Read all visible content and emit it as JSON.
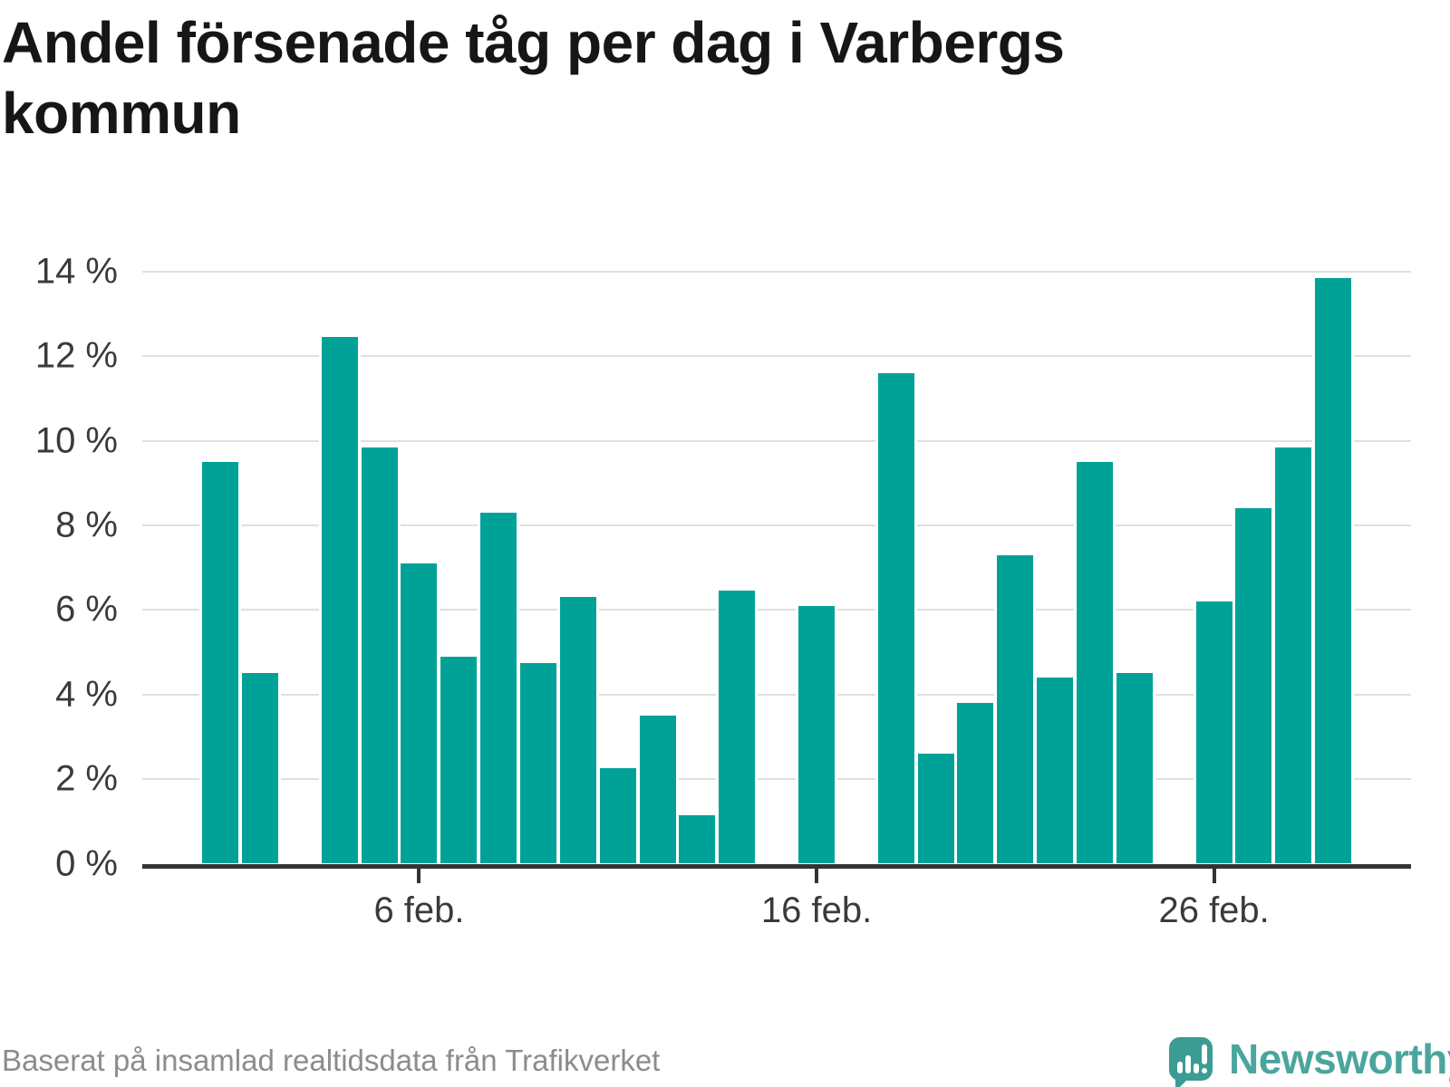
{
  "title": "Andel försenade tåg per dag i Varbergs kommun",
  "footer": {
    "source": "Baserat på insamlad realtidsdata från Trafikverket"
  },
  "logo": {
    "text": "Newsworthy",
    "bubble_color": "#3b9c94",
    "text_color": "#4ba59e",
    "icon": "bar-chart-exclamation-speech-bubble"
  },
  "colors": {
    "bar": "#00a298",
    "grid": "#e0e0e0",
    "axis": "#333333",
    "tick_label": "#3a3a3a",
    "title": "#161616",
    "footer_text": "#8c8c8c",
    "background": "#ffffff"
  },
  "chart_data": {
    "type": "bar",
    "title": "Andel försenade tåg per dag i Varbergs kommun",
    "xlabel": "",
    "ylabel": "",
    "unit": "%",
    "month": "feb.",
    "categories": [
      1,
      2,
      3,
      4,
      5,
      6,
      7,
      8,
      9,
      10,
      11,
      12,
      13,
      14,
      15,
      16,
      17,
      18,
      19,
      20,
      21,
      22,
      23,
      24,
      25,
      26,
      27,
      28,
      29
    ],
    "values": [
      9.5,
      4.5,
      null,
      12.45,
      9.85,
      7.1,
      4.9,
      8.3,
      4.75,
      6.3,
      2.25,
      3.5,
      1.15,
      6.45,
      null,
      6.1,
      null,
      11.6,
      2.6,
      3.8,
      7.3,
      4.4,
      9.5,
      4.5,
      null,
      6.2,
      8.4,
      9.85,
      13.85
    ],
    "ylim": [
      0,
      14
    ],
    "y_ticks": [
      0,
      2,
      4,
      6,
      8,
      10,
      12,
      14
    ],
    "y_tick_labels": [
      "0 %",
      "2 %",
      "4 %",
      "6 %",
      "8 %",
      "10 %",
      "12 %",
      "14 %"
    ],
    "x_ticks": [
      {
        "day": 6,
        "label": "6 feb."
      },
      {
        "day": 16,
        "label": "16 feb."
      },
      {
        "day": 26,
        "label": "26 feb."
      }
    ],
    "grid": true,
    "legend": false,
    "bar_color": "#00a298"
  }
}
